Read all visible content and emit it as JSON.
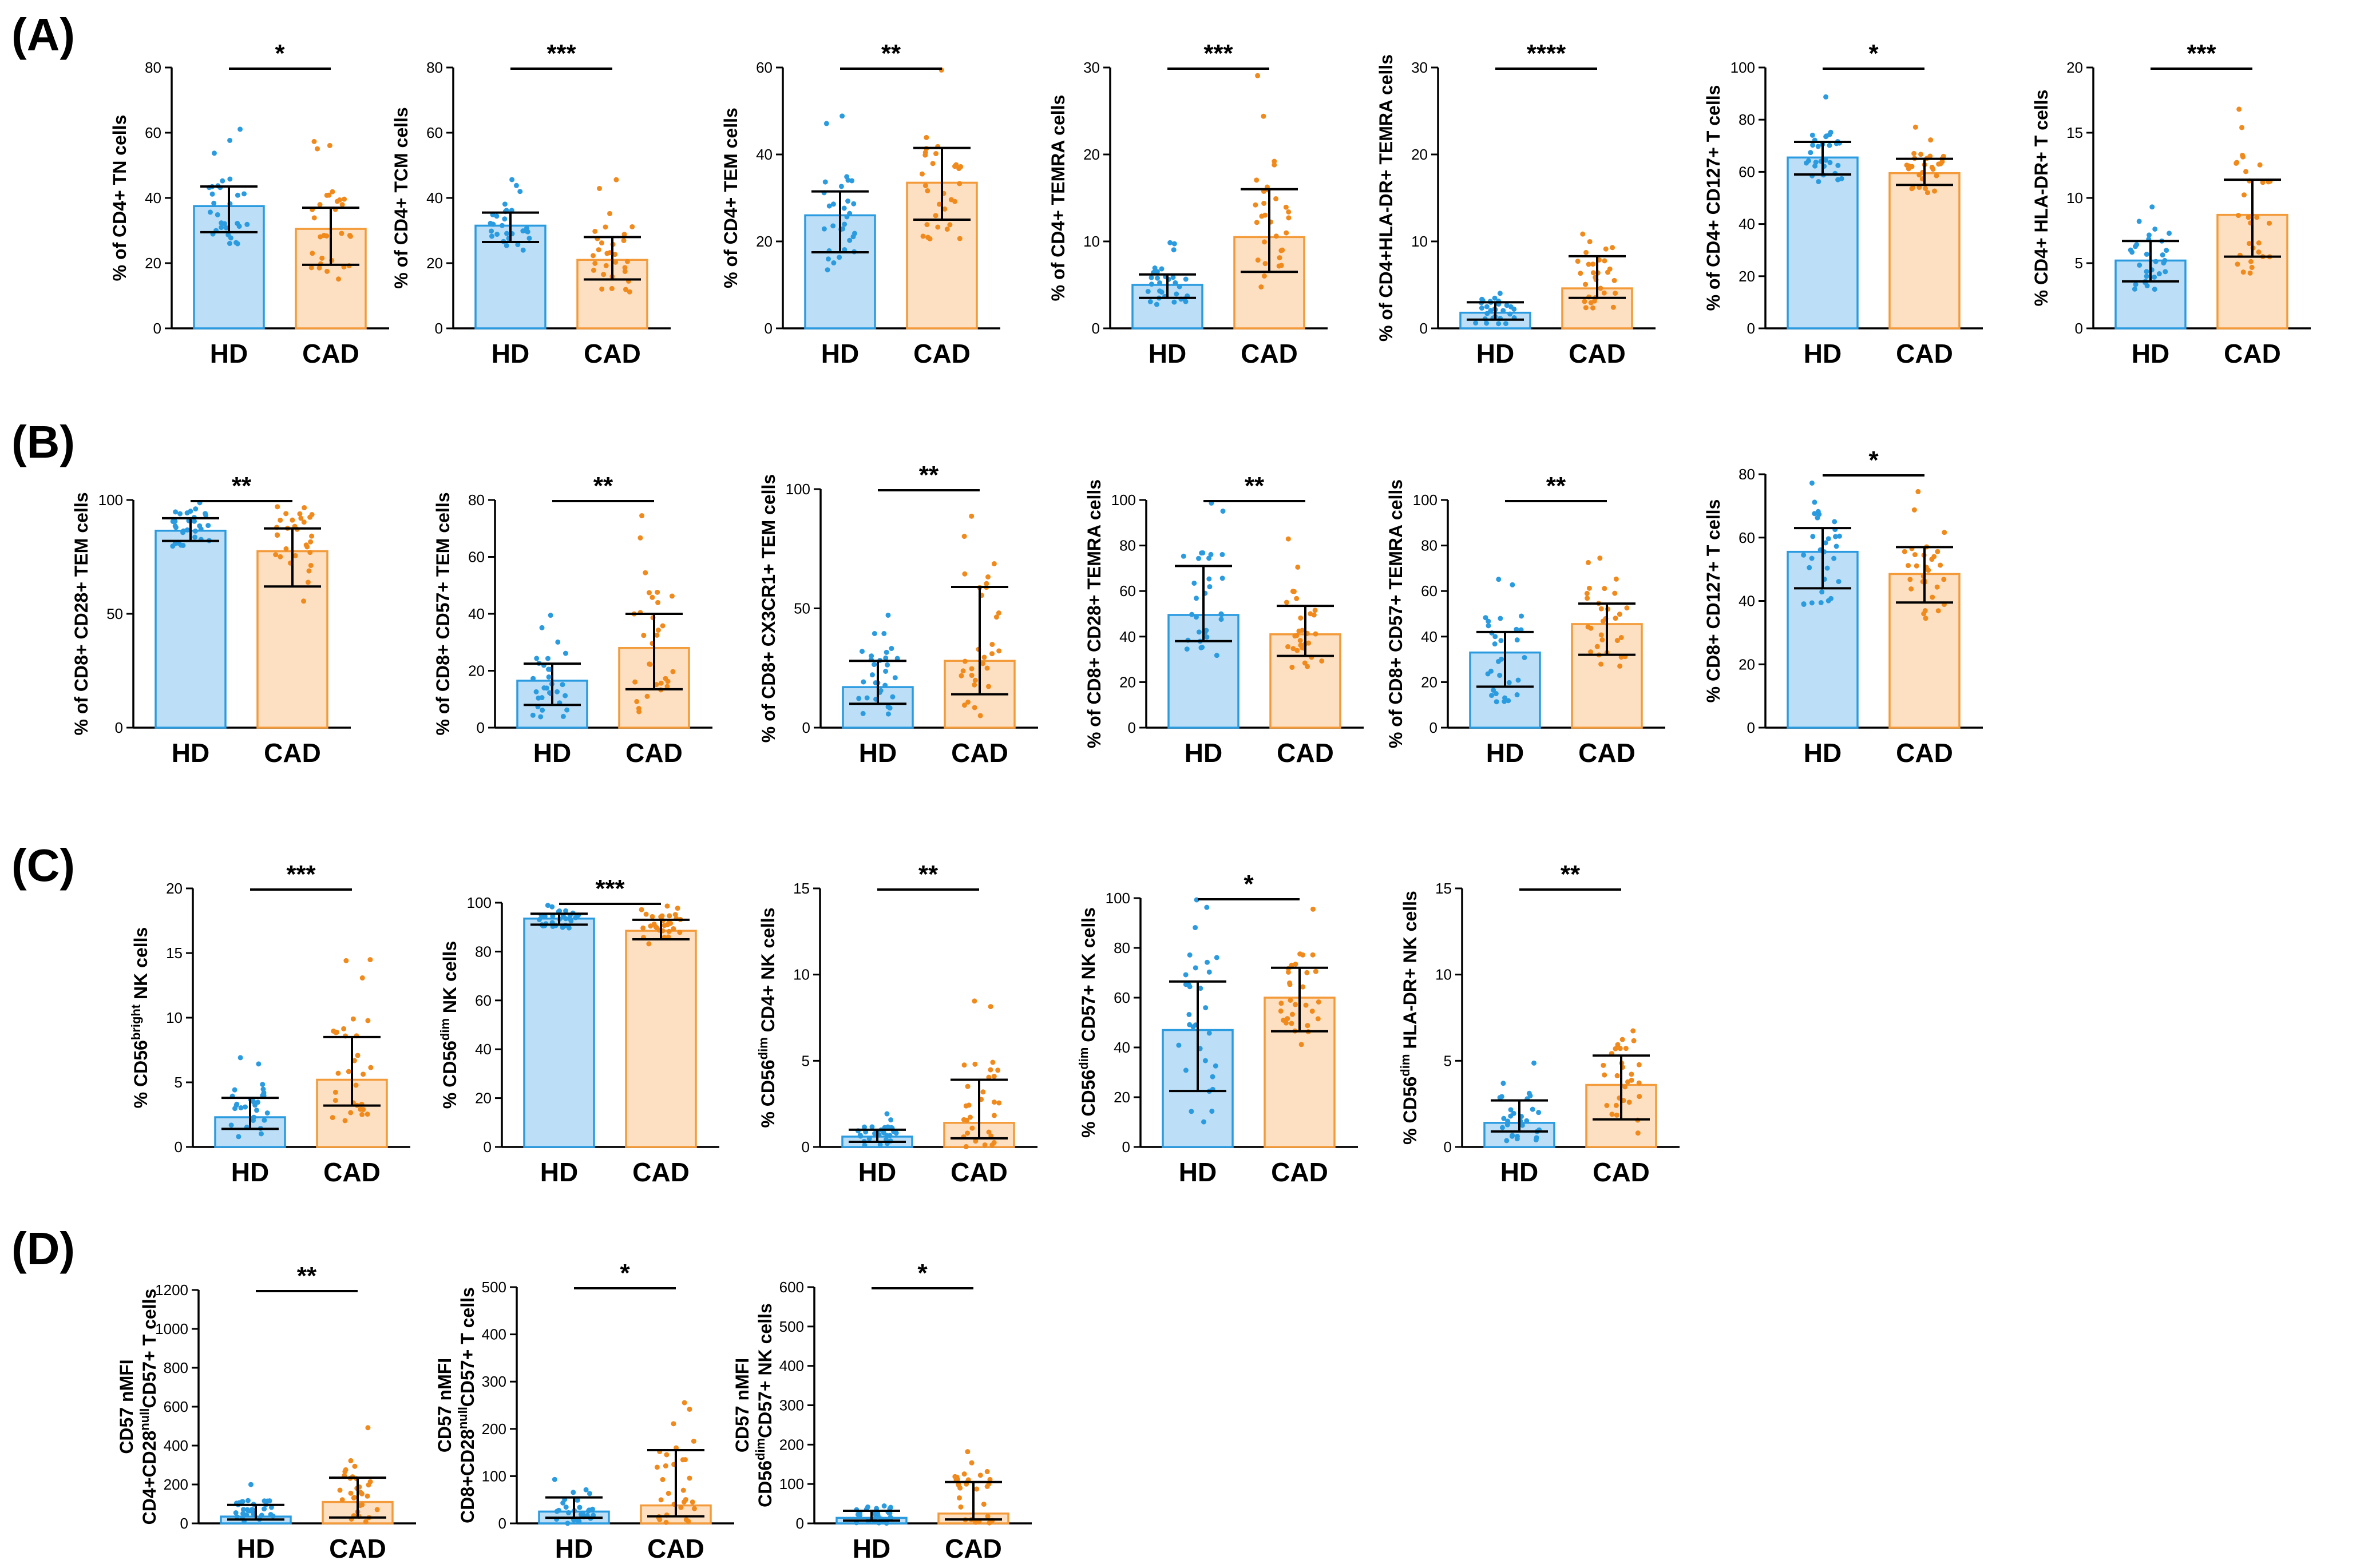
{
  "colors": {
    "hd_fill": "#bcdff7",
    "hd_stroke": "#2b9be0",
    "hd_dot": "#2b9be0",
    "cad_fill": "#fde0c2",
    "cad_stroke": "#f39b3a",
    "cad_dot": "#f08a1c",
    "axis": "#000000",
    "error": "#000000"
  },
  "panels": [
    {
      "letter": "(A)"
    },
    {
      "letter": "(B)"
    },
    {
      "letter": "(C)"
    },
    {
      "letter": "(D)"
    }
  ],
  "chart_data": [
    {
      "type": "bar",
      "panel": "A",
      "ylabel": "% of CD4+ TN cells",
      "categories": [
        "HD",
        "CAD"
      ],
      "values": [
        37.5,
        30.5
      ],
      "error_low": [
        29.5,
        19.5
      ],
      "error_high": [
        43.5,
        37.0
      ],
      "ylim": [
        0,
        80
      ],
      "yticks": [
        "0",
        "20",
        "40",
        "60",
        "80"
      ],
      "significance": "*"
    },
    {
      "type": "bar",
      "panel": "A",
      "ylabel": "% of CD4+ TCM cells",
      "categories": [
        "HD",
        "CAD"
      ],
      "values": [
        31.5,
        21.0
      ],
      "error_low": [
        26.5,
        15.0
      ],
      "error_high": [
        35.5,
        28.0
      ],
      "ylim": [
        0,
        80
      ],
      "yticks": [
        "0",
        "20",
        "40",
        "60",
        "80"
      ],
      "significance": "***"
    },
    {
      "type": "bar",
      "panel": "A",
      "ylabel": "% of CD4+ TEM cells",
      "categories": [
        "HD",
        "CAD"
      ],
      "values": [
        26.0,
        33.5
      ],
      "error_low": [
        17.5,
        25.0
      ],
      "error_high": [
        31.5,
        41.5
      ],
      "ylim": [
        0,
        60
      ],
      "yticks": [
        "0",
        "20",
        "40",
        "60"
      ],
      "significance": "**"
    },
    {
      "type": "bar",
      "panel": "A",
      "ylabel": "% of CD4+ TEMRA cells",
      "categories": [
        "HD",
        "CAD"
      ],
      "values": [
        5.0,
        10.5
      ],
      "error_low": [
        3.5,
        6.5
      ],
      "error_high": [
        6.2,
        16.0
      ],
      "ylim": [
        0,
        30
      ],
      "yticks": [
        "0",
        "10",
        "20",
        "30"
      ],
      "significance": "***"
    },
    {
      "type": "bar",
      "panel": "A",
      "ylabel": "% of CD4+HLA-DR+ TEMRA cells",
      "categories": [
        "HD",
        "CAD"
      ],
      "values": [
        1.8,
        4.6
      ],
      "error_low": [
        1.0,
        3.5
      ],
      "error_high": [
        3.0,
        8.3
      ],
      "ylim": [
        0,
        30
      ],
      "yticks": [
        "0",
        "10",
        "20",
        "30"
      ],
      "significance": "****"
    },
    {
      "type": "bar",
      "panel": "A",
      "ylabel": "% of CD4+ CD127+ T cells",
      "categories": [
        "HD",
        "CAD"
      ],
      "values": [
        65.5,
        59.5
      ],
      "error_low": [
        59.0,
        55.0
      ],
      "error_high": [
        71.5,
        65.0
      ],
      "ylim": [
        0,
        100
      ],
      "yticks": [
        "0",
        "20",
        "40",
        "60",
        "80",
        "100"
      ],
      "significance": "*"
    },
    {
      "type": "bar",
      "panel": "A",
      "ylabel": "% CD4+ HLA-DR+ T cells",
      "categories": [
        "HD",
        "CAD"
      ],
      "values": [
        5.2,
        8.7
      ],
      "error_low": [
        3.6,
        5.5
      ],
      "error_high": [
        6.7,
        11.4
      ],
      "ylim": [
        0,
        20
      ],
      "yticks": [
        "0",
        "5",
        "10",
        "15",
        "20"
      ],
      "significance": "***"
    },
    {
      "type": "bar",
      "panel": "B",
      "ylabel": "% of CD8+ CD28+ TEM cells",
      "categories": [
        "HD",
        "CAD"
      ],
      "values": [
        86.5,
        77.5
      ],
      "error_low": [
        82.0,
        62.0
      ],
      "error_high": [
        92.0,
        87.5
      ],
      "ylim": [
        0,
        100
      ],
      "yticks": [
        "0",
        "50",
        "100"
      ],
      "significance": "**"
    },
    {
      "type": "bar",
      "panel": "B",
      "ylabel": "% of CD8+ CD57+ TEM cells",
      "categories": [
        "HD",
        "CAD"
      ],
      "values": [
        16.5,
        28.0
      ],
      "error_low": [
        8.0,
        13.5
      ],
      "error_high": [
        22.5,
        40.0
      ],
      "ylim": [
        0,
        80
      ],
      "yticks": [
        "0",
        "20",
        "40",
        "60",
        "80"
      ],
      "significance": "**"
    },
    {
      "type": "bar",
      "panel": "B",
      "ylabel": "% of CD8+ CX3CR1+ TEM cells",
      "categories": [
        "HD",
        "CAD"
      ],
      "values": [
        17.0,
        28.0
      ],
      "error_low": [
        10.0,
        14.0
      ],
      "error_high": [
        28.0,
        59.0
      ],
      "ylim": [
        0,
        100
      ],
      "yticks": [
        "0",
        "50",
        "100"
      ],
      "significance": "**"
    },
    {
      "type": "bar",
      "panel": "B",
      "ylabel": "% of CD8+ CD28+ TEMRA cells",
      "categories": [
        "HD",
        "CAD"
      ],
      "values": [
        49.5,
        41.0
      ],
      "error_low": [
        38.0,
        31.5
      ],
      "error_high": [
        71.0,
        53.5
      ],
      "ylim": [
        0,
        100
      ],
      "yticks": [
        "0",
        "20",
        "40",
        "60",
        "80",
        "100"
      ],
      "significance": "**"
    },
    {
      "type": "bar",
      "panel": "B",
      "ylabel": "% of CD8+ CD57+ TEMRA cells",
      "categories": [
        "HD",
        "CAD"
      ],
      "values": [
        33.0,
        45.5
      ],
      "error_low": [
        18.0,
        32.0
      ],
      "error_high": [
        42.0,
        54.5
      ],
      "ylim": [
        0,
        100
      ],
      "yticks": [
        "0",
        "20",
        "40",
        "60",
        "80",
        "100"
      ],
      "significance": "**"
    },
    {
      "type": "bar",
      "panel": "B",
      "ylabel": "% CD8+ CD127+  T cells",
      "categories": [
        "HD",
        "CAD"
      ],
      "values": [
        55.5,
        48.5
      ],
      "error_low": [
        44.0,
        39.5
      ],
      "error_high": [
        63.0,
        57.0
      ],
      "ylim": [
        0,
        80
      ],
      "yticks": [
        "0",
        "20",
        "40",
        "60",
        "80"
      ],
      "significance": "*"
    },
    {
      "type": "bar",
      "panel": "C",
      "ylabel_pre": "% CD56",
      "ylabel_sup": "bright",
      "ylabel_post": " NK cells",
      "categories": [
        "HD",
        "CAD"
      ],
      "values": [
        2.3,
        5.2
      ],
      "error_low": [
        1.4,
        3.2
      ],
      "error_high": [
        3.8,
        8.5
      ],
      "ylim": [
        0,
        20
      ],
      "yticks": [
        "0",
        "5",
        "10",
        "15",
        "20"
      ],
      "significance": "***"
    },
    {
      "type": "bar",
      "panel": "C",
      "ylabel_pre": "% CD56",
      "ylabel_sup": "dim",
      "ylabel_post": " NK cells",
      "categories": [
        "HD",
        "CAD"
      ],
      "values": [
        93.5,
        88.5
      ],
      "error_low": [
        91.0,
        85.0
      ],
      "error_high": [
        95.5,
        93.0
      ],
      "ylim": [
        0,
        100
      ],
      "yticks": [
        "0",
        "20",
        "40",
        "60",
        "80",
        "100"
      ],
      "significance": "***"
    },
    {
      "type": "bar",
      "panel": "C",
      "ylabel_pre": "% CD56",
      "ylabel_sup": "dim",
      "ylabel_post": " CD4+ NK cells",
      "categories": [
        "HD",
        "CAD"
      ],
      "values": [
        0.6,
        1.4
      ],
      "error_low": [
        0.3,
        0.5
      ],
      "error_high": [
        1.0,
        3.9
      ],
      "ylim": [
        0,
        15
      ],
      "yticks": [
        "0",
        "5",
        "10",
        "15"
      ],
      "significance": "**"
    },
    {
      "type": "bar",
      "panel": "C",
      "ylabel_pre": "% CD56",
      "ylabel_sup": "dim",
      "ylabel_post": " CD57+ NK cells",
      "categories": [
        "HD",
        "CAD"
      ],
      "values": [
        47.0,
        60.0
      ],
      "error_low": [
        22.5,
        46.5
      ],
      "error_high": [
        66.5,
        72.0
      ],
      "ylim": [
        0,
        100
      ],
      "yticks": [
        "0",
        "20",
        "40",
        "60",
        "80",
        "100"
      ],
      "significance": "*"
    },
    {
      "type": "bar",
      "panel": "C",
      "ylabel_pre": "% CD56",
      "ylabel_sup": "dim",
      "ylabel_post": " HLA-DR+ NK cells",
      "categories": [
        "HD",
        "CAD"
      ],
      "values": [
        1.4,
        3.6
      ],
      "error_low": [
        0.9,
        1.6
      ],
      "error_high": [
        2.7,
        5.3
      ],
      "ylim": [
        0,
        15
      ],
      "yticks": [
        "0",
        "5",
        "10",
        "15"
      ],
      "significance": "**"
    },
    {
      "type": "bar",
      "panel": "D",
      "ylabel_line1": "CD57 nMFI",
      "ylabel_pre": "CD4+CD28",
      "ylabel_sup": "null",
      "ylabel_post": "CD57+ T cells",
      "categories": [
        "HD",
        "CAD"
      ],
      "values": [
        35,
        110
      ],
      "error_low": [
        20,
        30
      ],
      "error_high": [
        95,
        235
      ],
      "ylim": [
        0,
        1200
      ],
      "yticks": [
        "0",
        "200",
        "400",
        "600",
        "800",
        "1000",
        "1200"
      ],
      "significance": "**"
    },
    {
      "type": "bar",
      "panel": "D",
      "ylabel_line1": "CD57 nMFI",
      "ylabel_pre": "CD8+CD28",
      "ylabel_sup": "null",
      "ylabel_post": "CD57+ T cells",
      "categories": [
        "HD",
        "CAD"
      ],
      "values": [
        25,
        38
      ],
      "error_low": [
        12,
        15
      ],
      "error_high": [
        55,
        155
      ],
      "ylim": [
        0,
        500
      ],
      "yticks": [
        "0",
        "100",
        "200",
        "300",
        "400",
        "500"
      ],
      "significance": "*"
    },
    {
      "type": "bar",
      "panel": "D",
      "ylabel_line1": "CD57 nMFI",
      "ylabel_pre": "CD56",
      "ylabel_sup": "dim",
      "ylabel_post": "CD57+ NK cells",
      "categories": [
        "HD",
        "CAD"
      ],
      "values": [
        14,
        25
      ],
      "error_low": [
        7,
        10
      ],
      "error_high": [
        32,
        105
      ],
      "ylim": [
        0,
        600
      ],
      "yticks": [
        "0",
        "100",
        "200",
        "300",
        "400",
        "500",
        "600"
      ],
      "significance": "*"
    }
  ]
}
